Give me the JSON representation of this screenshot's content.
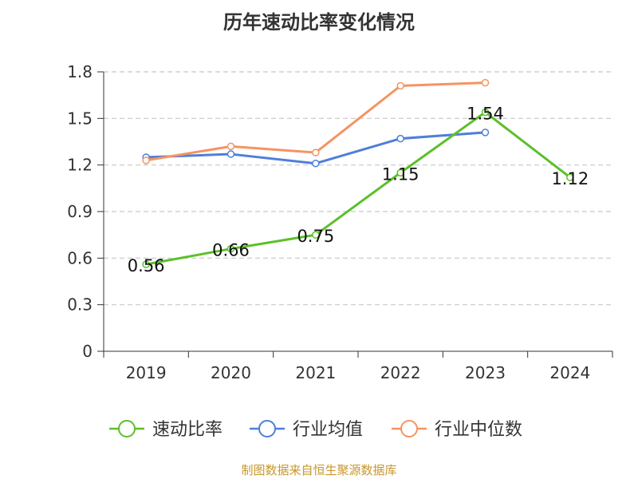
{
  "title": "历年速动比率变化情况",
  "source_text": "制图数据来自恒生聚源数据库",
  "colors": {
    "速动比率": "#5cc02a",
    "行业均值": "#4f7fd8",
    "行业中位数": "#f59462",
    "grid": "#c8c8c8",
    "axis": "#333333",
    "source": "#c8972a"
  },
  "chart_data": {
    "type": "line",
    "title": "历年速动比率变化情况",
    "xlabel": "",
    "ylabel": "",
    "categories": [
      "2019",
      "2020",
      "2021",
      "2022",
      "2023",
      "2024"
    ],
    "ylim": [
      0,
      1.8
    ],
    "yticks": [
      "0",
      "0.3",
      "0.6",
      "0.9",
      "1.2",
      "1.5",
      "1.8"
    ],
    "grid": "horizontal dashed",
    "legend_position": "bottom",
    "series": [
      {
        "name": "速动比率",
        "values": [
          0.56,
          0.66,
          0.75,
          1.15,
          1.54,
          1.12
        ],
        "labels": [
          "0.56",
          "0.66",
          "0.75",
          "1.15",
          "1.54",
          "1.12"
        ]
      },
      {
        "name": "行业均值",
        "values": [
          1.25,
          1.27,
          1.21,
          1.37,
          1.41,
          null
        ]
      },
      {
        "name": "行业中位数",
        "values": [
          1.23,
          1.32,
          1.28,
          1.71,
          1.73,
          null
        ]
      }
    ]
  }
}
